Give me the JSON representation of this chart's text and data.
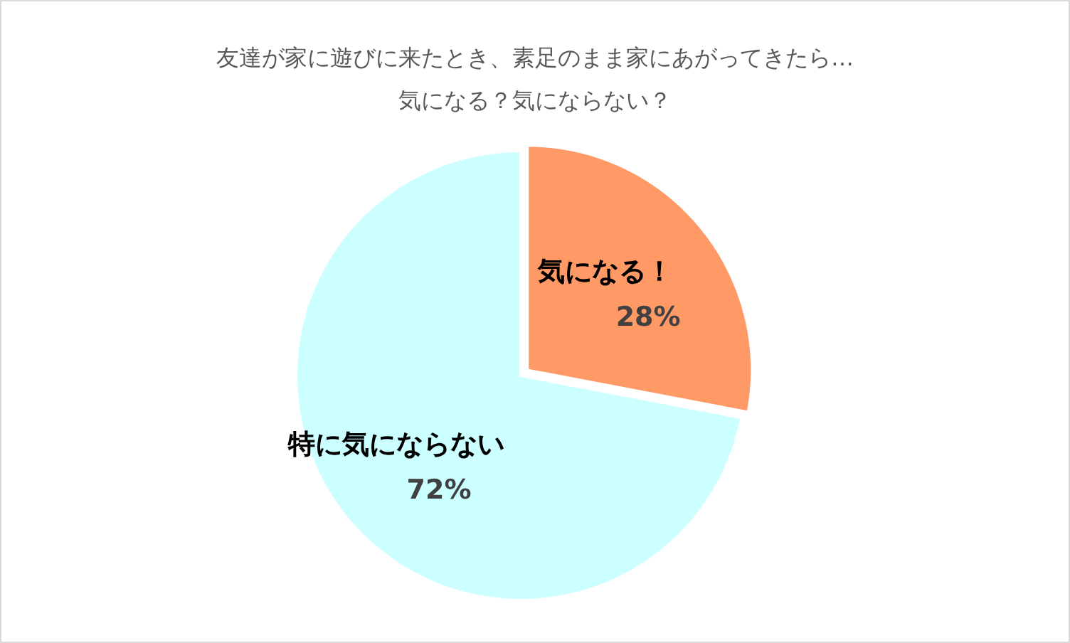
{
  "chart_data": {
    "type": "pie",
    "title": "友達が家に遊びに来たとき、素足のまま家にあがってきたら…",
    "subtitle": "気になる？気にならない？",
    "categories": [
      "気になる！",
      "特に気にならない"
    ],
    "values": [
      28,
      72
    ],
    "value_labels": [
      "28%",
      "72%"
    ],
    "colors": [
      "#ff9966",
      "#ccffff"
    ]
  }
}
